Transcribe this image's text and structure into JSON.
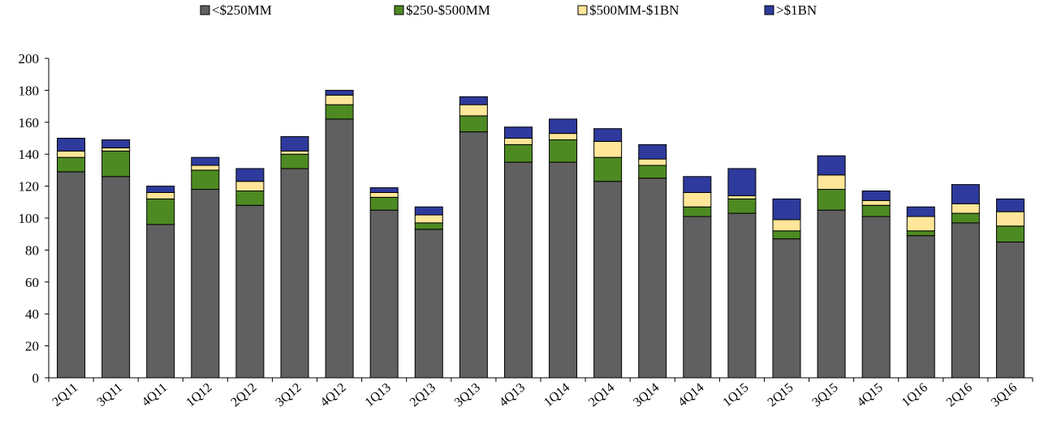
{
  "chart_data": {
    "type": "bar",
    "stacked": true,
    "title": "",
    "xlabel": "",
    "ylabel": "",
    "ylim": [
      0,
      200
    ],
    "yticks": [
      0,
      20,
      40,
      60,
      80,
      100,
      120,
      140,
      160,
      180,
      200
    ],
    "grid": false,
    "legend_position": "top",
    "categories": [
      "2Q11",
      "3Q11",
      "4Q11",
      "1Q12",
      "2Q12",
      "3Q12",
      "4Q12",
      "1Q13",
      "2Q13",
      "3Q13",
      "4Q13",
      "1Q14",
      "2Q14",
      "3Q14",
      "4Q14",
      "1Q15",
      "2Q15",
      "3Q15",
      "4Q15",
      "1Q16",
      "2Q16",
      "3Q16"
    ],
    "series": [
      {
        "name": "<$250MM",
        "color": "#606060",
        "values": [
          129,
          126,
          96,
          118,
          108,
          131,
          162,
          105,
          93,
          154,
          135,
          135,
          123,
          125,
          101,
          103,
          87,
          105,
          101,
          89,
          97,
          85
        ]
      },
      {
        "name": "$250-$500MM",
        "color": "#4e8a22",
        "values": [
          9,
          16,
          16,
          12,
          9,
          9,
          9,
          8,
          4,
          10,
          11,
          14,
          15,
          8,
          6,
          9,
          5,
          13,
          7,
          3,
          6,
          10
        ]
      },
      {
        "name": "$500MM-$1BN",
        "color": "#ffe699",
        "values": [
          4,
          2,
          4,
          3,
          6,
          2,
          6,
          3,
          5,
          7,
          4,
          4,
          10,
          4,
          9,
          2,
          7,
          9,
          3,
          9,
          6,
          9
        ]
      },
      {
        "name": ">$1BN",
        "color": "#2e3a9c",
        "values": [
          8,
          5,
          4,
          5,
          8,
          9,
          3,
          3,
          5,
          5,
          7,
          9,
          8,
          9,
          10,
          17,
          13,
          12,
          6,
          6,
          12,
          8
        ]
      }
    ]
  }
}
